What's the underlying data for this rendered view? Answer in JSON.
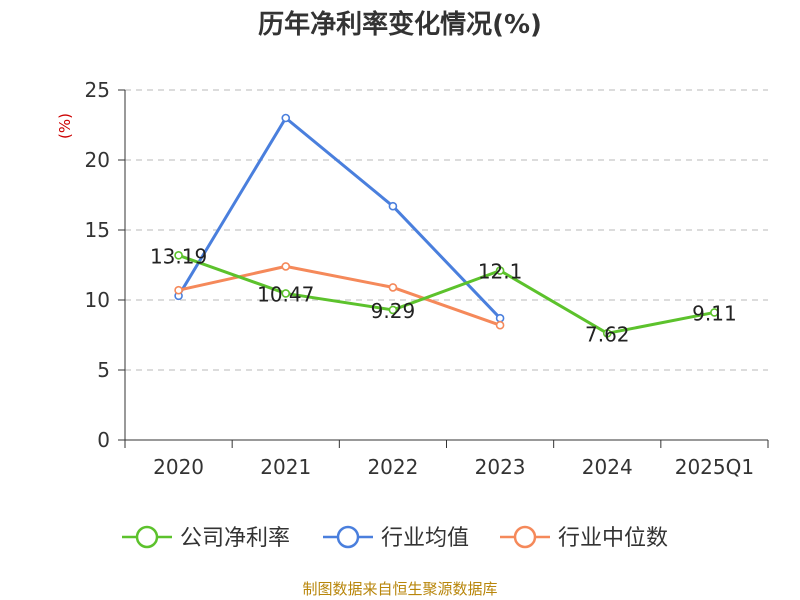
{
  "chart_data": {
    "type": "line",
    "title": "历年净利率变化情况(%)",
    "ylabel": "(%)",
    "xlabel": "",
    "categories": [
      "2020",
      "2021",
      "2022",
      "2023",
      "2024",
      "2025Q1"
    ],
    "ylim": [
      0,
      25
    ],
    "yticks": [
      0,
      5,
      10,
      15,
      20,
      25
    ],
    "grid": true,
    "legend_position": "bottom",
    "series": [
      {
        "name": "公司净利率",
        "color": "#5cc22c",
        "values": [
          13.19,
          10.47,
          9.29,
          12.1,
          7.62,
          9.11
        ],
        "show_labels": true
      },
      {
        "name": "行业均值",
        "color": "#4a7fdd",
        "values": [
          10.3,
          23.0,
          16.7,
          8.7,
          null,
          null
        ],
        "show_labels": false
      },
      {
        "name": "行业中位数",
        "color": "#f5895a",
        "values": [
          10.7,
          12.4,
          10.9,
          8.2,
          null,
          null
        ],
        "show_labels": false
      }
    ],
    "data_labels": [
      "13.19",
      "10.47",
      "9.29",
      "12.1",
      "7.62",
      "9.11"
    ]
  },
  "source_text": "制图数据来自恒生聚源数据库"
}
